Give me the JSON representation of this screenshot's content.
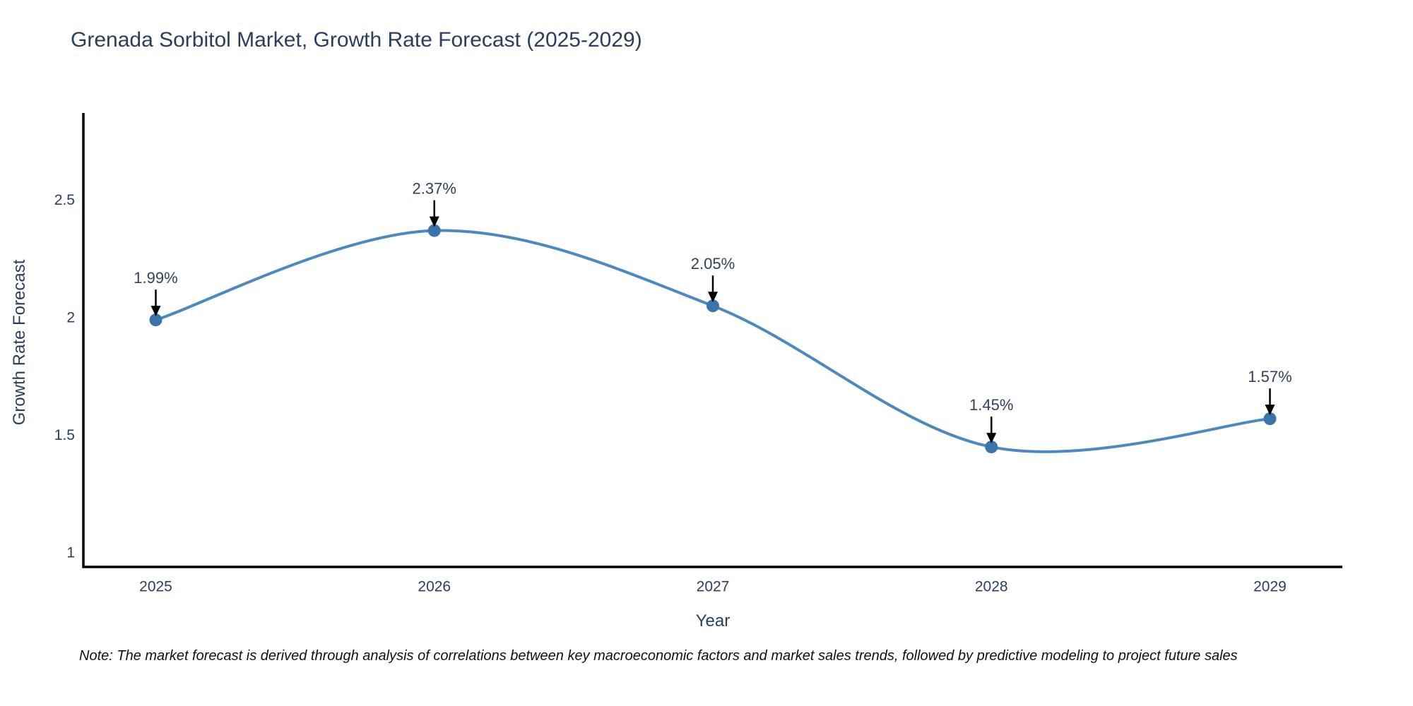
{
  "title": "Grenada Sorbitol Market, Growth Rate Forecast (2025-2029)",
  "note": "Note: The market forecast is derived through analysis of correlations between key macroeconomic factors and market sales trends, followed by predictive modeling to project future sales",
  "chart_data": {
    "type": "line",
    "line_shape": "spline",
    "x": [
      2025,
      2026,
      2027,
      2028,
      2029
    ],
    "values": [
      1.99,
      2.37,
      2.05,
      1.45,
      1.57
    ],
    "point_labels": [
      "1.99%",
      "2.37%",
      "2.05%",
      "1.45%",
      "1.57%"
    ],
    "title": "Grenada Sorbitol Market, Growth Rate Forecast (2025-2029)",
    "xlabel": "Year",
    "ylabel": "Growth Rate Forecast",
    "xticks": [
      {
        "value": 2025,
        "label": "2025"
      },
      {
        "value": 2026,
        "label": "2026"
      },
      {
        "value": 2027,
        "label": "2027"
      },
      {
        "value": 2028,
        "label": "2028"
      },
      {
        "value": 2029,
        "label": "2029"
      }
    ],
    "yticks": [
      {
        "value": 1,
        "label": "1"
      },
      {
        "value": 1.5,
        "label": "1.5"
      },
      {
        "value": 2,
        "label": "2"
      },
      {
        "value": 2.5,
        "label": "2.5"
      }
    ],
    "xlim": [
      2024.74,
      2029.26
    ],
    "ylim": [
      0.94,
      2.87
    ],
    "grid": false,
    "legend": "none",
    "colors": {
      "line": "#4c89c0",
      "marker": "#3a74ab",
      "axis": "#000000",
      "text": "#2c3e5d",
      "annotation_text": "#33415c",
      "arrow": "#000000",
      "note_text": "#111111",
      "background": "#ffffff"
    }
  }
}
